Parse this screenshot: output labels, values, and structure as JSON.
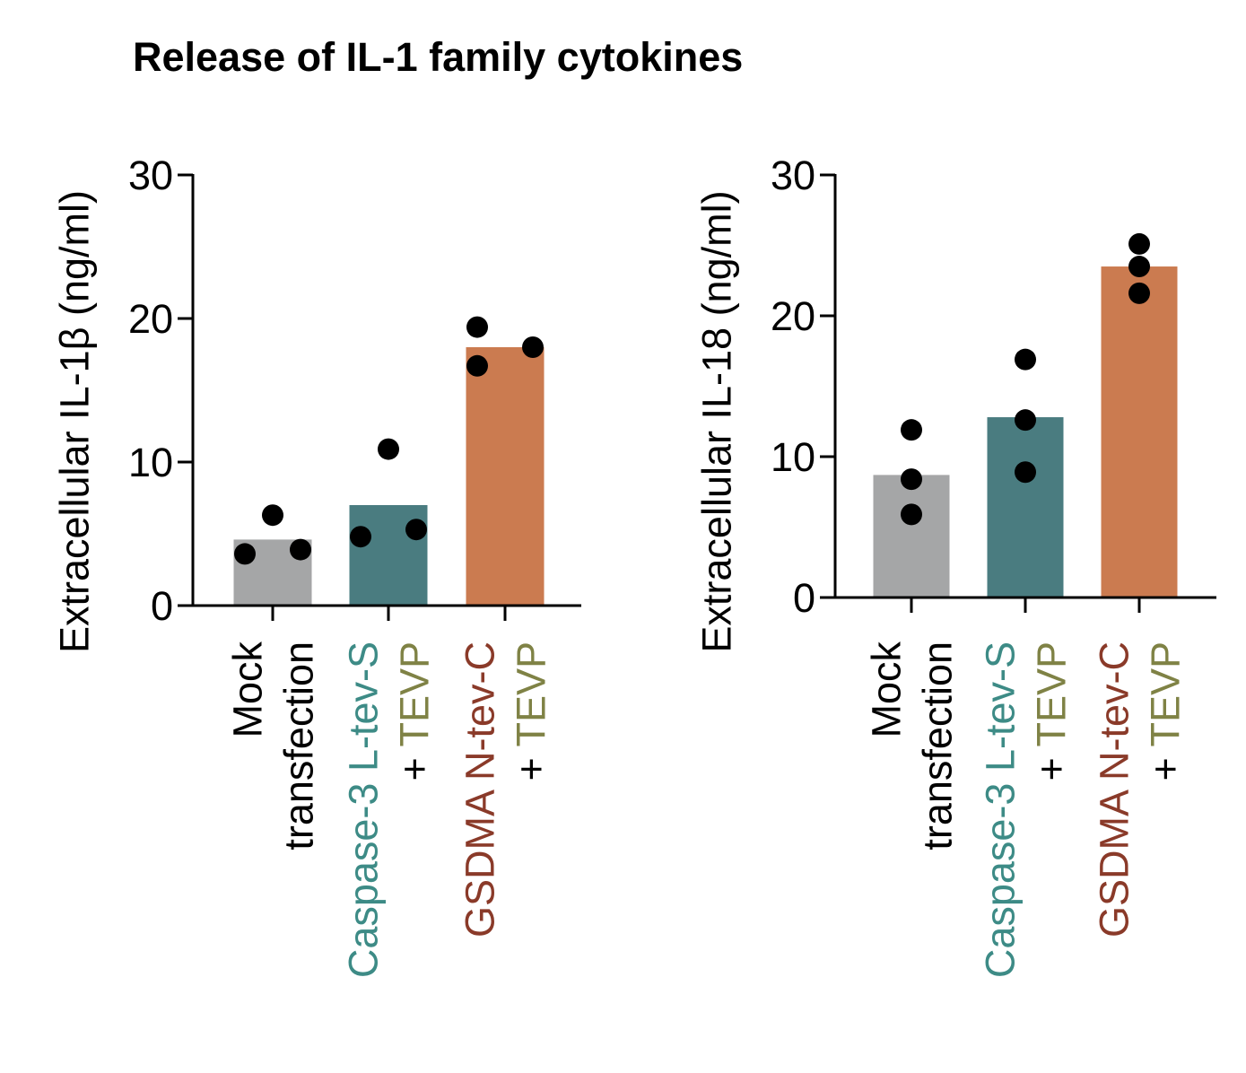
{
  "figure_title": "Release of IL-1 family cytokines",
  "colors": {
    "mock_bar": "#a5a6a7",
    "caspase_bar": "#4a7c80",
    "gsdma_bar": "#cb7b50",
    "caspase_text": "#3d8b86",
    "gsdma_text": "#8a3a29",
    "tevp_text": "#7f8245",
    "dot": "#000000"
  },
  "chart_data": [
    {
      "type": "bar",
      "name": "il1b-chart",
      "ylabel": "Extracellular IL-1β (ng/ml)",
      "ylim": [
        0,
        30
      ],
      "yticks": [
        0,
        10,
        20,
        30
      ],
      "categories": [
        {
          "lines": [
            [
              {
                "text": "Mock",
                "color": "#000000"
              }
            ],
            [
              {
                "text": "transfection",
                "color": "#000000"
              }
            ]
          ]
        },
        {
          "lines": [
            [
              {
                "text": "Caspase-3 L-tev-S",
                "color": "#3d8b86"
              }
            ],
            [
              {
                "text": "+ ",
                "color": "#000000"
              },
              {
                "text": "TEVP",
                "color": "#7f8245"
              }
            ]
          ]
        },
        {
          "lines": [
            [
              {
                "text": "GSDMA N-tev-C",
                "color": "#8a3a29"
              }
            ],
            [
              {
                "text": "+ ",
                "color": "#000000"
              },
              {
                "text": "TEVP",
                "color": "#7f8245"
              }
            ]
          ]
        }
      ],
      "bar_colors": [
        "#a5a6a7",
        "#4a7c80",
        "#cb7b50"
      ],
      "values": [
        4.6,
        7.0,
        18.0
      ],
      "points": [
        [
          3.6,
          6.3,
          3.9
        ],
        [
          4.8,
          10.9,
          5.3
        ],
        [
          19.4,
          16.7,
          18.0
        ]
      ]
    },
    {
      "type": "bar",
      "name": "il18-chart",
      "ylabel": "Extracellular IL-18 (ng/ml)",
      "ylim": [
        0,
        30
      ],
      "yticks": [
        0,
        10,
        20,
        30
      ],
      "categories": [
        {
          "lines": [
            [
              {
                "text": "Mock",
                "color": "#000000"
              }
            ],
            [
              {
                "text": "transfection",
                "color": "#000000"
              }
            ]
          ]
        },
        {
          "lines": [
            [
              {
                "text": "Caspase-3 L-tev-S",
                "color": "#3d8b86"
              }
            ],
            [
              {
                "text": "+ ",
                "color": "#000000"
              },
              {
                "text": "TEVP",
                "color": "#7f8245"
              }
            ]
          ]
        },
        {
          "lines": [
            [
              {
                "text": "GSDMA N-tev-C",
                "color": "#8a3a29"
              }
            ],
            [
              {
                "text": "+ ",
                "color": "#000000"
              },
              {
                "text": "TEVP",
                "color": "#7f8245"
              }
            ]
          ]
        }
      ],
      "bar_colors": [
        "#a5a6a7",
        "#4a7c80",
        "#cb7b50"
      ],
      "values": [
        8.7,
        12.8,
        23.5
      ],
      "points": [
        [
          11.9,
          8.4,
          5.9
        ],
        [
          16.9,
          12.6,
          8.9
        ],
        [
          25.1,
          23.5,
          21.6
        ]
      ]
    }
  ]
}
